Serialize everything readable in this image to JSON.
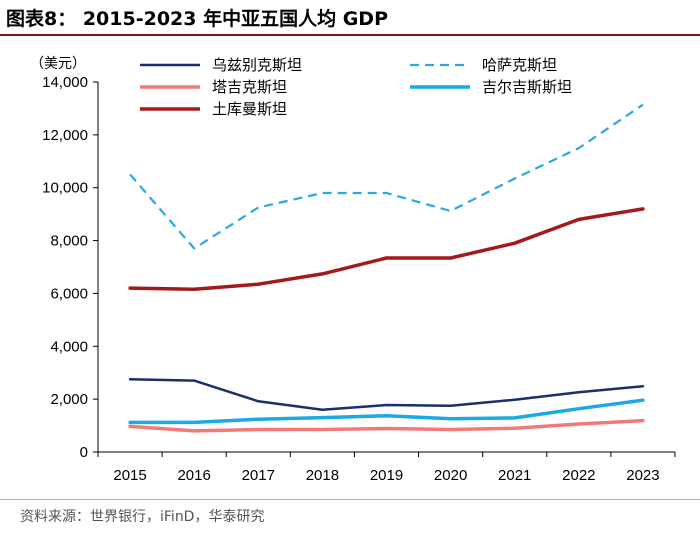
{
  "figure": {
    "title": "图表8： 2015-2023 年中亚五国人均 GDP",
    "source": "资料来源：世界银行，iFinD，华泰研究"
  },
  "chart_data": {
    "type": "line",
    "title": "2015-2023 年中亚五国人均 GDP",
    "ylabel": "（美元）",
    "xlabel": "",
    "ylim": [
      0,
      14000
    ],
    "yticks": [
      0,
      2000,
      4000,
      6000,
      8000,
      10000,
      12000,
      14000
    ],
    "ytick_labels": [
      "0",
      "2,000",
      "4,000",
      "6,000",
      "8,000",
      "10,000",
      "12,000",
      "14,000"
    ],
    "categories": [
      "2015",
      "2016",
      "2017",
      "2018",
      "2019",
      "2020",
      "2021",
      "2022",
      "2023"
    ],
    "grid": false,
    "legend_position": "top",
    "series": [
      {
        "name": "乌兹别克斯坦",
        "color": "#1a2f6b",
        "dash": "solid",
        "values": [
          2750,
          2700,
          1920,
          1600,
          1780,
          1750,
          1980,
          2260,
          2490
        ]
      },
      {
        "name": "哈萨克斯坦",
        "color": "#2aa8e0",
        "dash": "dashed",
        "values": [
          10500,
          7700,
          9250,
          9800,
          9800,
          9120,
          10350,
          11500,
          13140
        ]
      },
      {
        "name": "塔吉克斯坦",
        "color": "#f07a7a",
        "dash": "solid",
        "values": [
          970,
          800,
          850,
          850,
          890,
          850,
          900,
          1060,
          1190
        ]
      },
      {
        "name": "吉尔吉斯斯坦",
        "color": "#19a9e6",
        "dash": "solid",
        "values": [
          1120,
          1120,
          1240,
          1300,
          1370,
          1260,
          1290,
          1640,
          1960
        ]
      },
      {
        "name": "土库曼斯坦",
        "color": "#a31a1a",
        "dash": "solid",
        "values": [
          6200,
          6160,
          6350,
          6740,
          7340,
          7340,
          7900,
          8800,
          9200
        ]
      }
    ]
  }
}
